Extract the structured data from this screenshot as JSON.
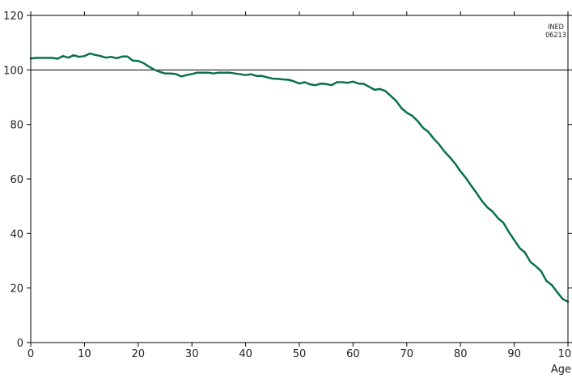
{
  "chart_data": {
    "type": "line",
    "title": "",
    "xlabel": "Age",
    "ylabel": "",
    "xlim": [
      0,
      100
    ],
    "ylim": [
      0,
      120
    ],
    "x_ticks": [
      0,
      10,
      20,
      30,
      40,
      50,
      60,
      70,
      80,
      90,
      100
    ],
    "y_ticks": [
      0,
      20,
      40,
      60,
      80,
      100,
      120
    ],
    "reference_line": 100,
    "grid": false,
    "annotation": [
      "INED",
      "06213"
    ],
    "line_color": "#0a7048",
    "reference_color": "#000000",
    "series": [
      {
        "x": [
          0,
          1,
          2,
          3,
          4,
          5,
          6,
          7,
          8,
          9,
          10,
          11,
          12,
          13,
          14,
          15,
          16,
          17,
          18,
          19,
          20,
          21,
          22,
          23,
          24,
          25,
          26,
          27,
          28,
          29,
          30,
          31,
          32,
          33,
          34,
          35,
          36,
          37,
          38,
          39,
          40,
          41,
          42,
          43,
          44,
          45,
          46,
          47,
          48,
          49,
          50,
          51,
          52,
          53,
          54,
          55,
          56,
          57,
          58,
          59,
          60,
          61,
          62,
          63,
          64,
          65,
          66,
          67,
          68,
          69,
          70,
          71,
          72,
          73,
          74,
          75,
          76,
          77,
          78,
          79,
          80,
          81,
          82,
          83,
          84,
          85,
          86,
          87,
          88,
          89,
          90,
          91,
          92,
          93,
          94,
          95,
          96,
          97,
          98,
          99,
          100
        ],
        "values": [
          104.2,
          104.4,
          104.4,
          104.4,
          104.4,
          104.1,
          105.1,
          104.5,
          105.4,
          104.8,
          105.1,
          106.0,
          105.5,
          105.1,
          104.5,
          104.8,
          104.3,
          104.9,
          104.9,
          103.4,
          103.3,
          102.5,
          101.2,
          100.1,
          99.3,
          98.7,
          98.7,
          98.5,
          97.6,
          98.1,
          98.5,
          99.0,
          99.0,
          99.0,
          98.7,
          99.0,
          99.0,
          99.0,
          98.7,
          98.4,
          98.1,
          98.4,
          97.8,
          97.8,
          97.3,
          96.8,
          96.7,
          96.5,
          96.4,
          95.8,
          95.0,
          95.5,
          94.7,
          94.4,
          95.0,
          94.8,
          94.4,
          95.5,
          95.5,
          95.3,
          95.7,
          95.0,
          94.9,
          93.8,
          92.7,
          93.0,
          92.3,
          90.5,
          88.7,
          86.0,
          84.3,
          83.2,
          81.3,
          78.8,
          77.3,
          74.8,
          72.7,
          70.1,
          68.0,
          65.6,
          62.8,
          60.4,
          57.5,
          54.8,
          51.9,
          49.6,
          48.0,
          45.6,
          43.9,
          40.5,
          37.6,
          34.7,
          33.0,
          29.6,
          28.0,
          26.2,
          22.6,
          21.1,
          18.5,
          16.0,
          15.0
        ]
      }
    ]
  }
}
